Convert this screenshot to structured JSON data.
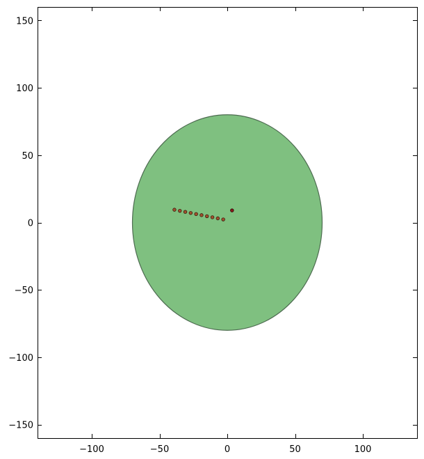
{
  "chart_data": {
    "type": "scatter",
    "title": "",
    "xlabel": "",
    "ylabel": "",
    "xlim": [
      -140,
      140
    ],
    "ylim": [
      -160,
      160
    ],
    "xticks": [
      -100,
      -50,
      0,
      50,
      100
    ],
    "yticks": [
      -150,
      -100,
      -50,
      0,
      50,
      100,
      150
    ],
    "grid": false,
    "shapes": [
      {
        "kind": "ellipse",
        "center": [
          0,
          0
        ],
        "radius_x": 70,
        "radius_y": 80,
        "fill": "#7fc080",
        "stroke": "#4d6b50"
      }
    ],
    "series": [
      {
        "points": [
          {
            "x": -39,
            "y": 9.5
          },
          {
            "x": -35,
            "y": 8.7
          },
          {
            "x": -31,
            "y": 7.9
          },
          {
            "x": -27,
            "y": 7.1
          },
          {
            "x": -23,
            "y": 6.3
          },
          {
            "x": -19,
            "y": 5.5
          },
          {
            "x": -15,
            "y": 4.7
          },
          {
            "x": -11,
            "y": 3.9
          },
          {
            "x": -7,
            "y": 3.1
          },
          {
            "x": -3,
            "y": 2.3
          }
        ],
        "color": "#a0522d",
        "edge_color": "#3a1a10"
      },
      {
        "points": [
          {
            "x": 3.5,
            "y": 9.0
          }
        ],
        "color": "#8b1a1a",
        "edge_color": "#2a0505"
      }
    ]
  }
}
